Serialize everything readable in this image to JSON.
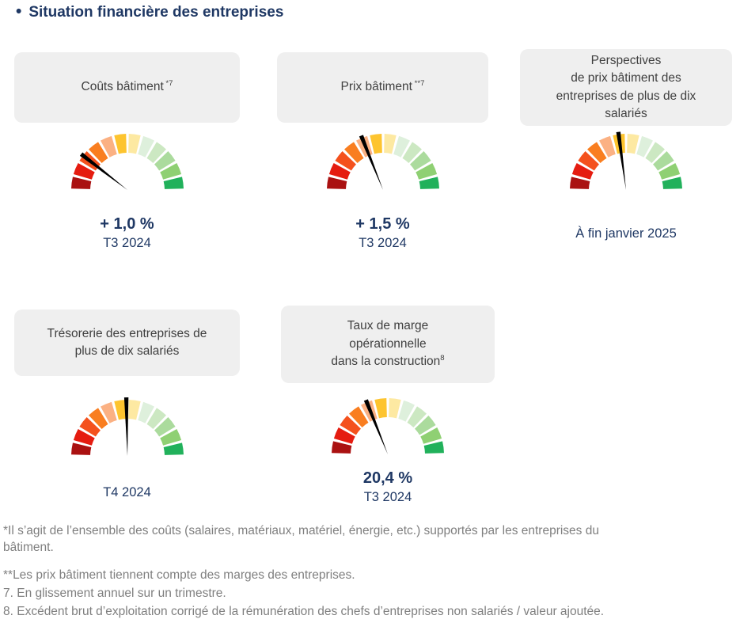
{
  "page": {
    "title": "Situation financière des entreprises"
  },
  "colors": {
    "title_text": "#1f3864",
    "value_text": "#1f3864",
    "card_background": "#efefef",
    "card_text": "#3f3f3f",
    "footnote_text": "#7f7f7f",
    "needle": "#000000"
  },
  "chart_data": {
    "type": "gauge",
    "description": "Five semicircular speedometer gauges, 12 colored segments from dark red (left, 0) to green (right, 1), black needle; needle_fraction 0 = far left (red), 1 = far right (green)",
    "segments": 12,
    "segment_colors": [
      "#aa1111",
      "#e51c10",
      "#f4511d",
      "#f97e20",
      "#fbb183",
      "#fdc42f",
      "#fde9a2",
      "#def0dc",
      "#cce8c2",
      "#abdb9d",
      "#8fd073",
      "#21b15b"
    ],
    "gauges": [
      {
        "title_lines": [
          "Coûts bâtiment"
        ],
        "title_sup": " *7",
        "needle_fraction": 0.21,
        "value": "+ 1,0 %",
        "period": "T3 2024"
      },
      {
        "title_lines": [
          "Prix bâtiment"
        ],
        "title_sup": " **7",
        "needle_fraction": 0.378,
        "value": "+ 1,5 %",
        "period": "T3 2024"
      },
      {
        "title_lines": [
          "Perspectives",
          "de prix bâtiment des",
          "entreprises de plus de dix",
          "salariés"
        ],
        "title_sup": "",
        "needle_fraction": 0.458,
        "value": "",
        "period": "À fin janvier 2025"
      },
      {
        "title_lines": [
          "Trésorerie des entreprises de",
          "plus de dix salariés"
        ],
        "title_sup": "",
        "needle_fraction": 0.494,
        "value": "",
        "period": "T4 2024"
      },
      {
        "title_lines": [
          "Taux de marge",
          "opérationnelle",
          "dans la construction"
        ],
        "title_sup": "8",
        "needle_fraction": 0.378,
        "value": "20,4 %",
        "period": "T3 2024"
      }
    ]
  },
  "footnotes": [
    "*Il s’agit de l’ensemble des coûts (salaires, matériaux, matériel, énergie, etc.) supportés par les entreprises du bâtiment.",
    "**Les prix bâtiment tiennent compte des marges des entreprises.",
    "7. En glissement annuel sur un trimestre.",
    "8. Excédent brut d’exploitation corrigé de la rémunération des chefs d’entreprises non salariés / valeur ajoutée."
  ]
}
